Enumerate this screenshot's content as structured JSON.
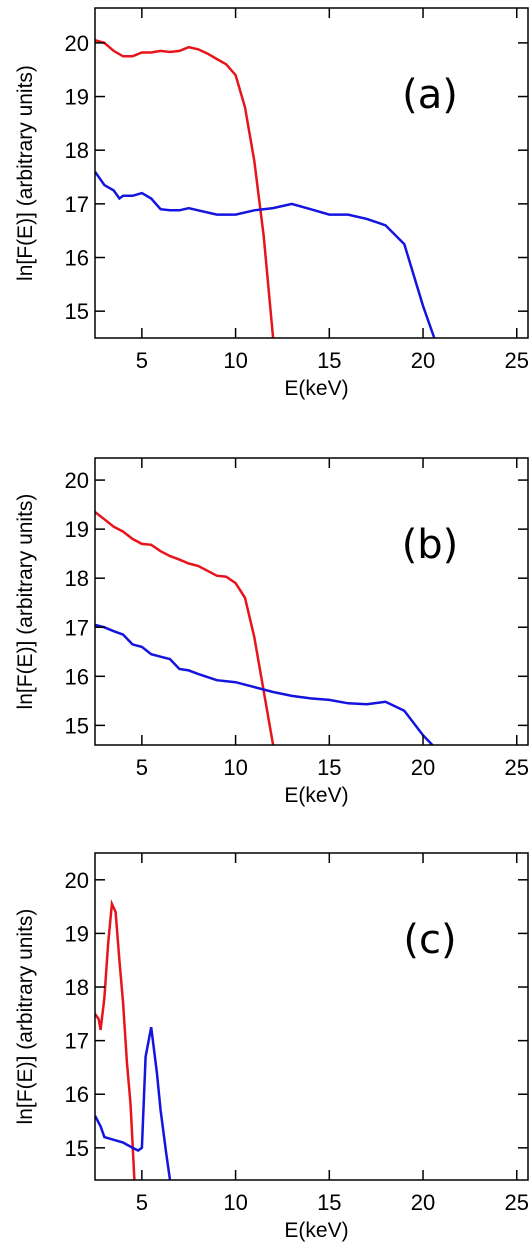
{
  "chart_data": [
    {
      "type": "line",
      "annotation": "(a)",
      "x_label": "E(keV)",
      "y_label": "ln[F(E)] (arbitrary units)",
      "xlim": [
        2.5,
        25.6
      ],
      "ylim": [
        14.5,
        20.65
      ],
      "xticks": [
        5,
        10,
        15,
        20,
        25
      ],
      "yticks": [
        15,
        16,
        17,
        18,
        19,
        20
      ],
      "series": [
        {
          "color": "#e8141b",
          "x": [
            2.5,
            3,
            3.5,
            4,
            4.5,
            5,
            5.5,
            6,
            6.5,
            7,
            7.5,
            8,
            8.5,
            9,
            9.5,
            10,
            10.5,
            11,
            11.5,
            12
          ],
          "values": [
            20.05,
            20.0,
            19.85,
            19.75,
            19.75,
            19.82,
            19.82,
            19.85,
            19.83,
            19.85,
            19.92,
            19.88,
            19.8,
            19.7,
            19.6,
            19.4,
            18.8,
            17.8,
            16.4,
            14.5
          ]
        },
        {
          "color": "#1414e0",
          "x": [
            2.5,
            3,
            3.5,
            3.8,
            4,
            4.5,
            5,
            5.5,
            6,
            6.5,
            7,
            7.5,
            8,
            9,
            10,
            11,
            12,
            13,
            14,
            15,
            16,
            17,
            18,
            19,
            20,
            20.6
          ],
          "values": [
            17.6,
            17.35,
            17.25,
            17.1,
            17.15,
            17.15,
            17.2,
            17.1,
            16.9,
            16.88,
            16.88,
            16.92,
            16.88,
            16.8,
            16.8,
            16.88,
            16.92,
            17.0,
            16.9,
            16.8,
            16.8,
            16.72,
            16.6,
            16.25,
            15.1,
            14.5
          ]
        }
      ]
    },
    {
      "type": "line",
      "annotation": "(b)",
      "x_label": "E(keV)",
      "y_label": "ln[F(E)] (arbitrary units)",
      "xlim": [
        2.5,
        25.6
      ],
      "ylim": [
        14.6,
        20.45
      ],
      "xticks": [
        5,
        10,
        15,
        20,
        25
      ],
      "yticks": [
        15,
        16,
        17,
        18,
        19,
        20
      ],
      "series": [
        {
          "color": "#e8141b",
          "x": [
            2.5,
            3,
            3.5,
            4,
            4.5,
            5,
            5.5,
            6,
            6.5,
            7,
            7.5,
            8,
            8.5,
            9,
            9.5,
            10,
            10.5,
            11,
            11.5,
            12
          ],
          "values": [
            19.35,
            19.2,
            19.05,
            18.95,
            18.8,
            18.7,
            18.68,
            18.55,
            18.45,
            18.38,
            18.3,
            18.25,
            18.15,
            18.05,
            18.03,
            17.9,
            17.6,
            16.8,
            15.7,
            14.6
          ]
        },
        {
          "color": "#1414e0",
          "x": [
            2.5,
            3,
            3.5,
            4,
            4.5,
            5,
            5.5,
            6,
            6.5,
            7,
            7.5,
            8,
            9,
            10,
            11,
            12,
            13,
            14,
            15,
            16,
            17,
            18,
            19,
            20,
            20.5
          ],
          "values": [
            17.05,
            17.0,
            16.92,
            16.85,
            16.65,
            16.6,
            16.45,
            16.4,
            16.35,
            16.15,
            16.12,
            16.05,
            15.92,
            15.88,
            15.78,
            15.68,
            15.6,
            15.55,
            15.52,
            15.45,
            15.43,
            15.48,
            15.3,
            14.8,
            14.6
          ]
        }
      ]
    },
    {
      "type": "line",
      "annotation": "(c)",
      "x_label": "E(keV)",
      "y_label": "ln[F(E)] (arbitrary units)",
      "xlim": [
        2.5,
        25.6
      ],
      "ylim": [
        14.4,
        20.5
      ],
      "xticks": [
        5,
        10,
        15,
        20,
        25
      ],
      "yticks": [
        15,
        16,
        17,
        18,
        19,
        20
      ],
      "series": [
        {
          "color": "#e8141b",
          "x": [
            2.5,
            2.7,
            2.8,
            3,
            3.2,
            3.4,
            3.6,
            3.8,
            4,
            4.2,
            4.4,
            4.6
          ],
          "values": [
            17.5,
            17.4,
            17.2,
            17.8,
            18.8,
            19.55,
            19.4,
            18.5,
            17.7,
            16.6,
            15.8,
            14.4
          ]
        },
        {
          "color": "#1414e0",
          "x": [
            2.5,
            2.8,
            3,
            3.5,
            4,
            4.5,
            4.8,
            5,
            5.2,
            5.5,
            5.8,
            6,
            6.3,
            6.5
          ],
          "values": [
            15.6,
            15.4,
            15.2,
            15.15,
            15.1,
            15.0,
            14.95,
            15.0,
            16.7,
            17.25,
            16.4,
            15.7,
            14.9,
            14.4
          ]
        }
      ]
    }
  ]
}
